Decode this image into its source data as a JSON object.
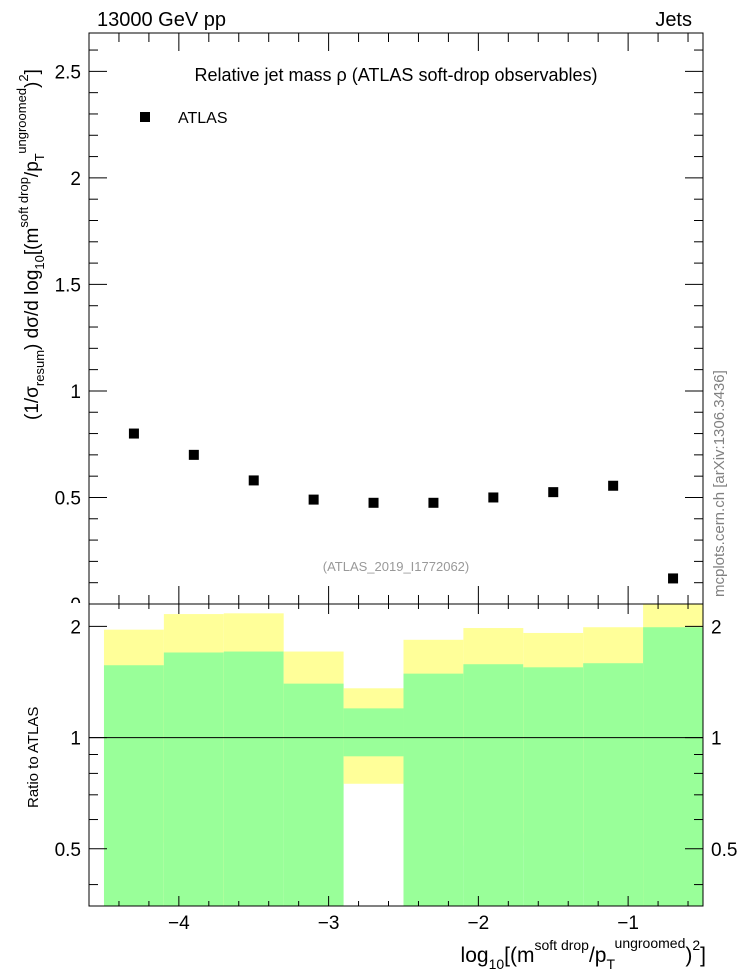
{
  "header": {
    "left": "13000 GeV pp",
    "right": "Jets"
  },
  "plot": {
    "title": "Relative jet mass  ρ (ATLAS soft-drop observables)",
    "legend_label": "ATLAS",
    "analysis_id": "(ATLAS_2019_I1772062)",
    "watermark": "mcplots.cern.ch [arXiv:1306.3436]"
  },
  "ratio_panel": {
    "ylabel": "Ratio to ATLAS"
  },
  "colors": {
    "marker": "#000000",
    "band_inner": "#99ff99",
    "band_outer": "#ffff99",
    "watermark": "#808080",
    "analysis_id": "#999999"
  },
  "chart_data": [
    {
      "type": "scatter",
      "title": "Relative jet mass  ρ (ATLAS soft-drop observables)",
      "xlabel": "log10[(m^soft drop/pT^ungroomed)^2]",
      "ylabel": "(1/σ_resum) dσ/d log10[(m^soft drop/pT^ungroomed)^2]",
      "xlim": [
        -4.6,
        -0.5
      ],
      "ylim": [
        0,
        2.68
      ],
      "yticks": [
        "0.5",
        "1",
        "1.5",
        "2",
        "2.5"
      ],
      "grid": false,
      "legend_position": "top-left",
      "series": [
        {
          "name": "ATLAS",
          "x": [
            -4.3,
            -3.9,
            -3.5,
            -3.1,
            -2.7,
            -2.3,
            -1.9,
            -1.5,
            -1.1,
            -0.7
          ],
          "y": [
            0.8,
            0.7,
            0.58,
            0.49,
            0.475,
            0.475,
            0.5,
            0.525,
            0.555,
            0.12
          ]
        }
      ]
    },
    {
      "type": "area",
      "title": "",
      "xlabel": "log10[(m^soft drop/pT^ungroomed)^2]",
      "ylabel": "Ratio to ATLAS",
      "xlim": [
        -4.6,
        -0.5
      ],
      "ylim": [
        0.35,
        2.3
      ],
      "yticks": [
        "0.5",
        "1",
        "2"
      ],
      "xticks": [
        "−4",
        "−3",
        "−2",
        "−1"
      ],
      "reference_line": 1,
      "grid": false,
      "bins": [
        [
          -4.5,
          -4.1
        ],
        [
          -4.1,
          -3.7
        ],
        [
          -3.7,
          -3.3
        ],
        [
          -3.3,
          -2.9
        ],
        [
          -2.9,
          -2.5
        ],
        [
          -2.5,
          -2.1
        ],
        [
          -2.1,
          -1.7
        ],
        [
          -1.7,
          -1.3
        ],
        [
          -1.3,
          -0.9
        ],
        [
          -0.9,
          -0.5
        ]
      ],
      "band_outer_hi": [
        1.96,
        2.16,
        2.17,
        1.71,
        1.36,
        1.84,
        1.98,
        1.92,
        1.99,
        2.3
      ],
      "band_outer_lo": [
        0.52,
        0.35,
        0.35,
        0.72,
        0.75,
        0.63,
        0.51,
        0.55,
        0.49,
        0.35
      ],
      "band_inner_hi": [
        1.57,
        1.7,
        1.71,
        1.4,
        1.2,
        1.49,
        1.58,
        1.55,
        1.59,
        1.99
      ],
      "band_inner_lo": [
        0.35,
        0.35,
        0.35,
        0.35,
        0.89,
        0.35,
        0.35,
        0.35,
        0.35,
        0.35
      ]
    }
  ]
}
